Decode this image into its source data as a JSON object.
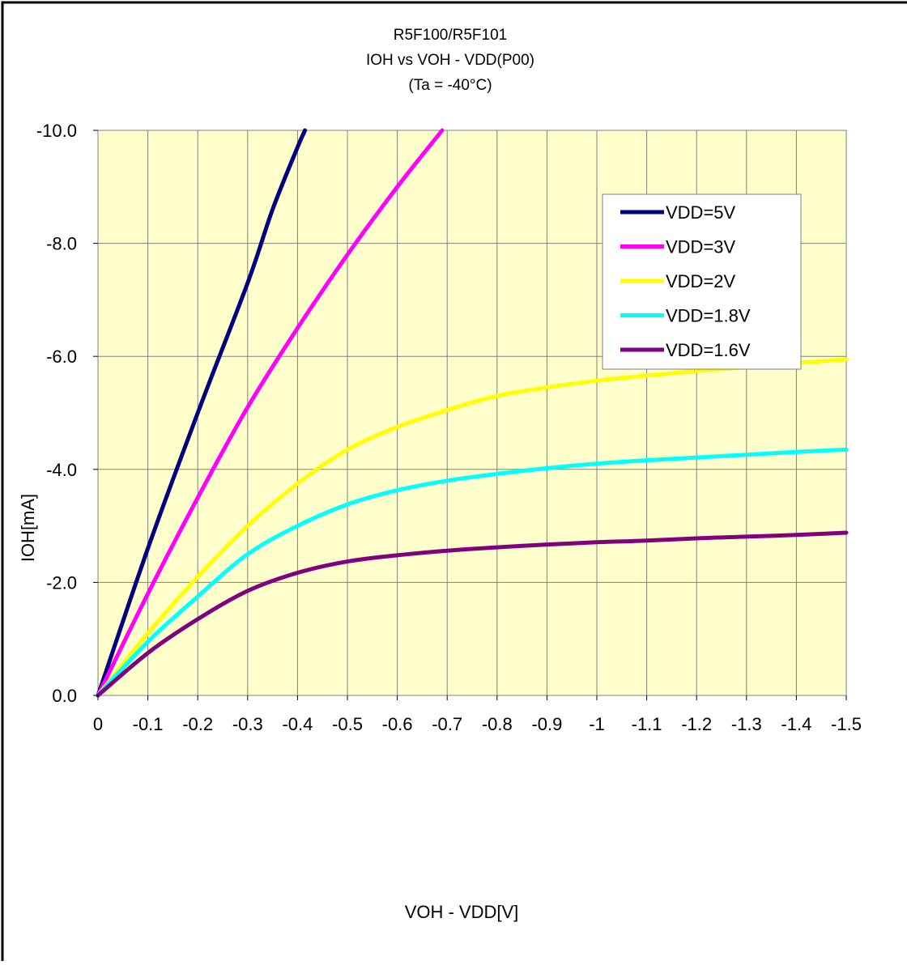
{
  "chart_data": {
    "type": "line",
    "title": [
      "R5F100/R5F101",
      "IOH vs VOH  - VDD(P00)",
      "(Ta =  -40°C)"
    ],
    "xlabel": "VOH - VDD[V]",
    "ylabel": "IOH[mA]",
    "xlim": [
      0,
      -1.5
    ],
    "ylim": [
      0,
      -10
    ],
    "x_ticks": [
      0,
      -0.1,
      -0.2,
      -0.3,
      -0.4,
      -0.5,
      -0.6,
      -0.7,
      -0.8,
      -0.9,
      -1,
      -1.1,
      -1.2,
      -1.3,
      -1.4,
      -1.5
    ],
    "x_tick_labels": [
      "0",
      "-0.1",
      "-0.2",
      "-0.3",
      "-0.4",
      "-0.5",
      "-0.6",
      "-0.7",
      "-0.8",
      "-0.9",
      "-1",
      "-1.1",
      "-1.2",
      "-1.3",
      "-1.4",
      "-1.5"
    ],
    "y_ticks": [
      0,
      -2,
      -4,
      -6,
      -8,
      -10
    ],
    "y_tick_labels": [
      "0.0",
      "-2.0",
      "-4.0",
      "-6.0",
      "-8.0",
      "-10.0"
    ],
    "grid": true,
    "plot_background": "#ffffcc",
    "legend": "top-right",
    "series": [
      {
        "name": "VDD=5V",
        "color": "#000080",
        "x": [
          0,
          -0.1,
          -0.2,
          -0.3,
          -0.35,
          -0.4,
          -0.415
        ],
        "y": [
          0,
          -2.6,
          -5.0,
          -7.3,
          -8.6,
          -9.7,
          -10.0
        ]
      },
      {
        "name": "VDD=3V",
        "color": "#ff00ff",
        "x": [
          0,
          -0.1,
          -0.2,
          -0.3,
          -0.4,
          -0.5,
          -0.6,
          -0.69
        ],
        "y": [
          0,
          -1.8,
          -3.5,
          -5.1,
          -6.5,
          -7.8,
          -9.0,
          -10.0
        ]
      },
      {
        "name": "VDD=2V",
        "color": "#ffff00",
        "x": [
          0,
          -0.1,
          -0.2,
          -0.3,
          -0.4,
          -0.5,
          -0.6,
          -0.7,
          -0.8,
          -0.9,
          -1.0,
          -1.1,
          -1.2,
          -1.3,
          -1.4,
          -1.5
        ],
        "y": [
          0,
          -1.1,
          -2.1,
          -3.0,
          -3.75,
          -4.35,
          -4.75,
          -5.05,
          -5.3,
          -5.45,
          -5.57,
          -5.66,
          -5.74,
          -5.81,
          -5.88,
          -5.95
        ]
      },
      {
        "name": "VDD=1.8V",
        "color": "#00ffff",
        "x": [
          0,
          -0.1,
          -0.2,
          -0.3,
          -0.4,
          -0.5,
          -0.6,
          -0.7,
          -0.8,
          -0.9,
          -1.0,
          -1.1,
          -1.2,
          -1.3,
          -1.4,
          -1.5
        ],
        "y": [
          0,
          -0.95,
          -1.75,
          -2.5,
          -3.0,
          -3.38,
          -3.63,
          -3.8,
          -3.92,
          -4.02,
          -4.1,
          -4.16,
          -4.21,
          -4.26,
          -4.31,
          -4.35
        ]
      },
      {
        "name": "VDD=1.6V",
        "color": "#800080",
        "x": [
          0,
          -0.1,
          -0.2,
          -0.3,
          -0.4,
          -0.5,
          -0.6,
          -0.7,
          -0.8,
          -0.9,
          -1.0,
          -1.1,
          -1.2,
          -1.3,
          -1.4,
          -1.5
        ],
        "y": [
          0,
          -0.75,
          -1.35,
          -1.85,
          -2.17,
          -2.37,
          -2.48,
          -2.56,
          -2.62,
          -2.67,
          -2.71,
          -2.74,
          -2.78,
          -2.81,
          -2.84,
          -2.88
        ]
      }
    ]
  }
}
